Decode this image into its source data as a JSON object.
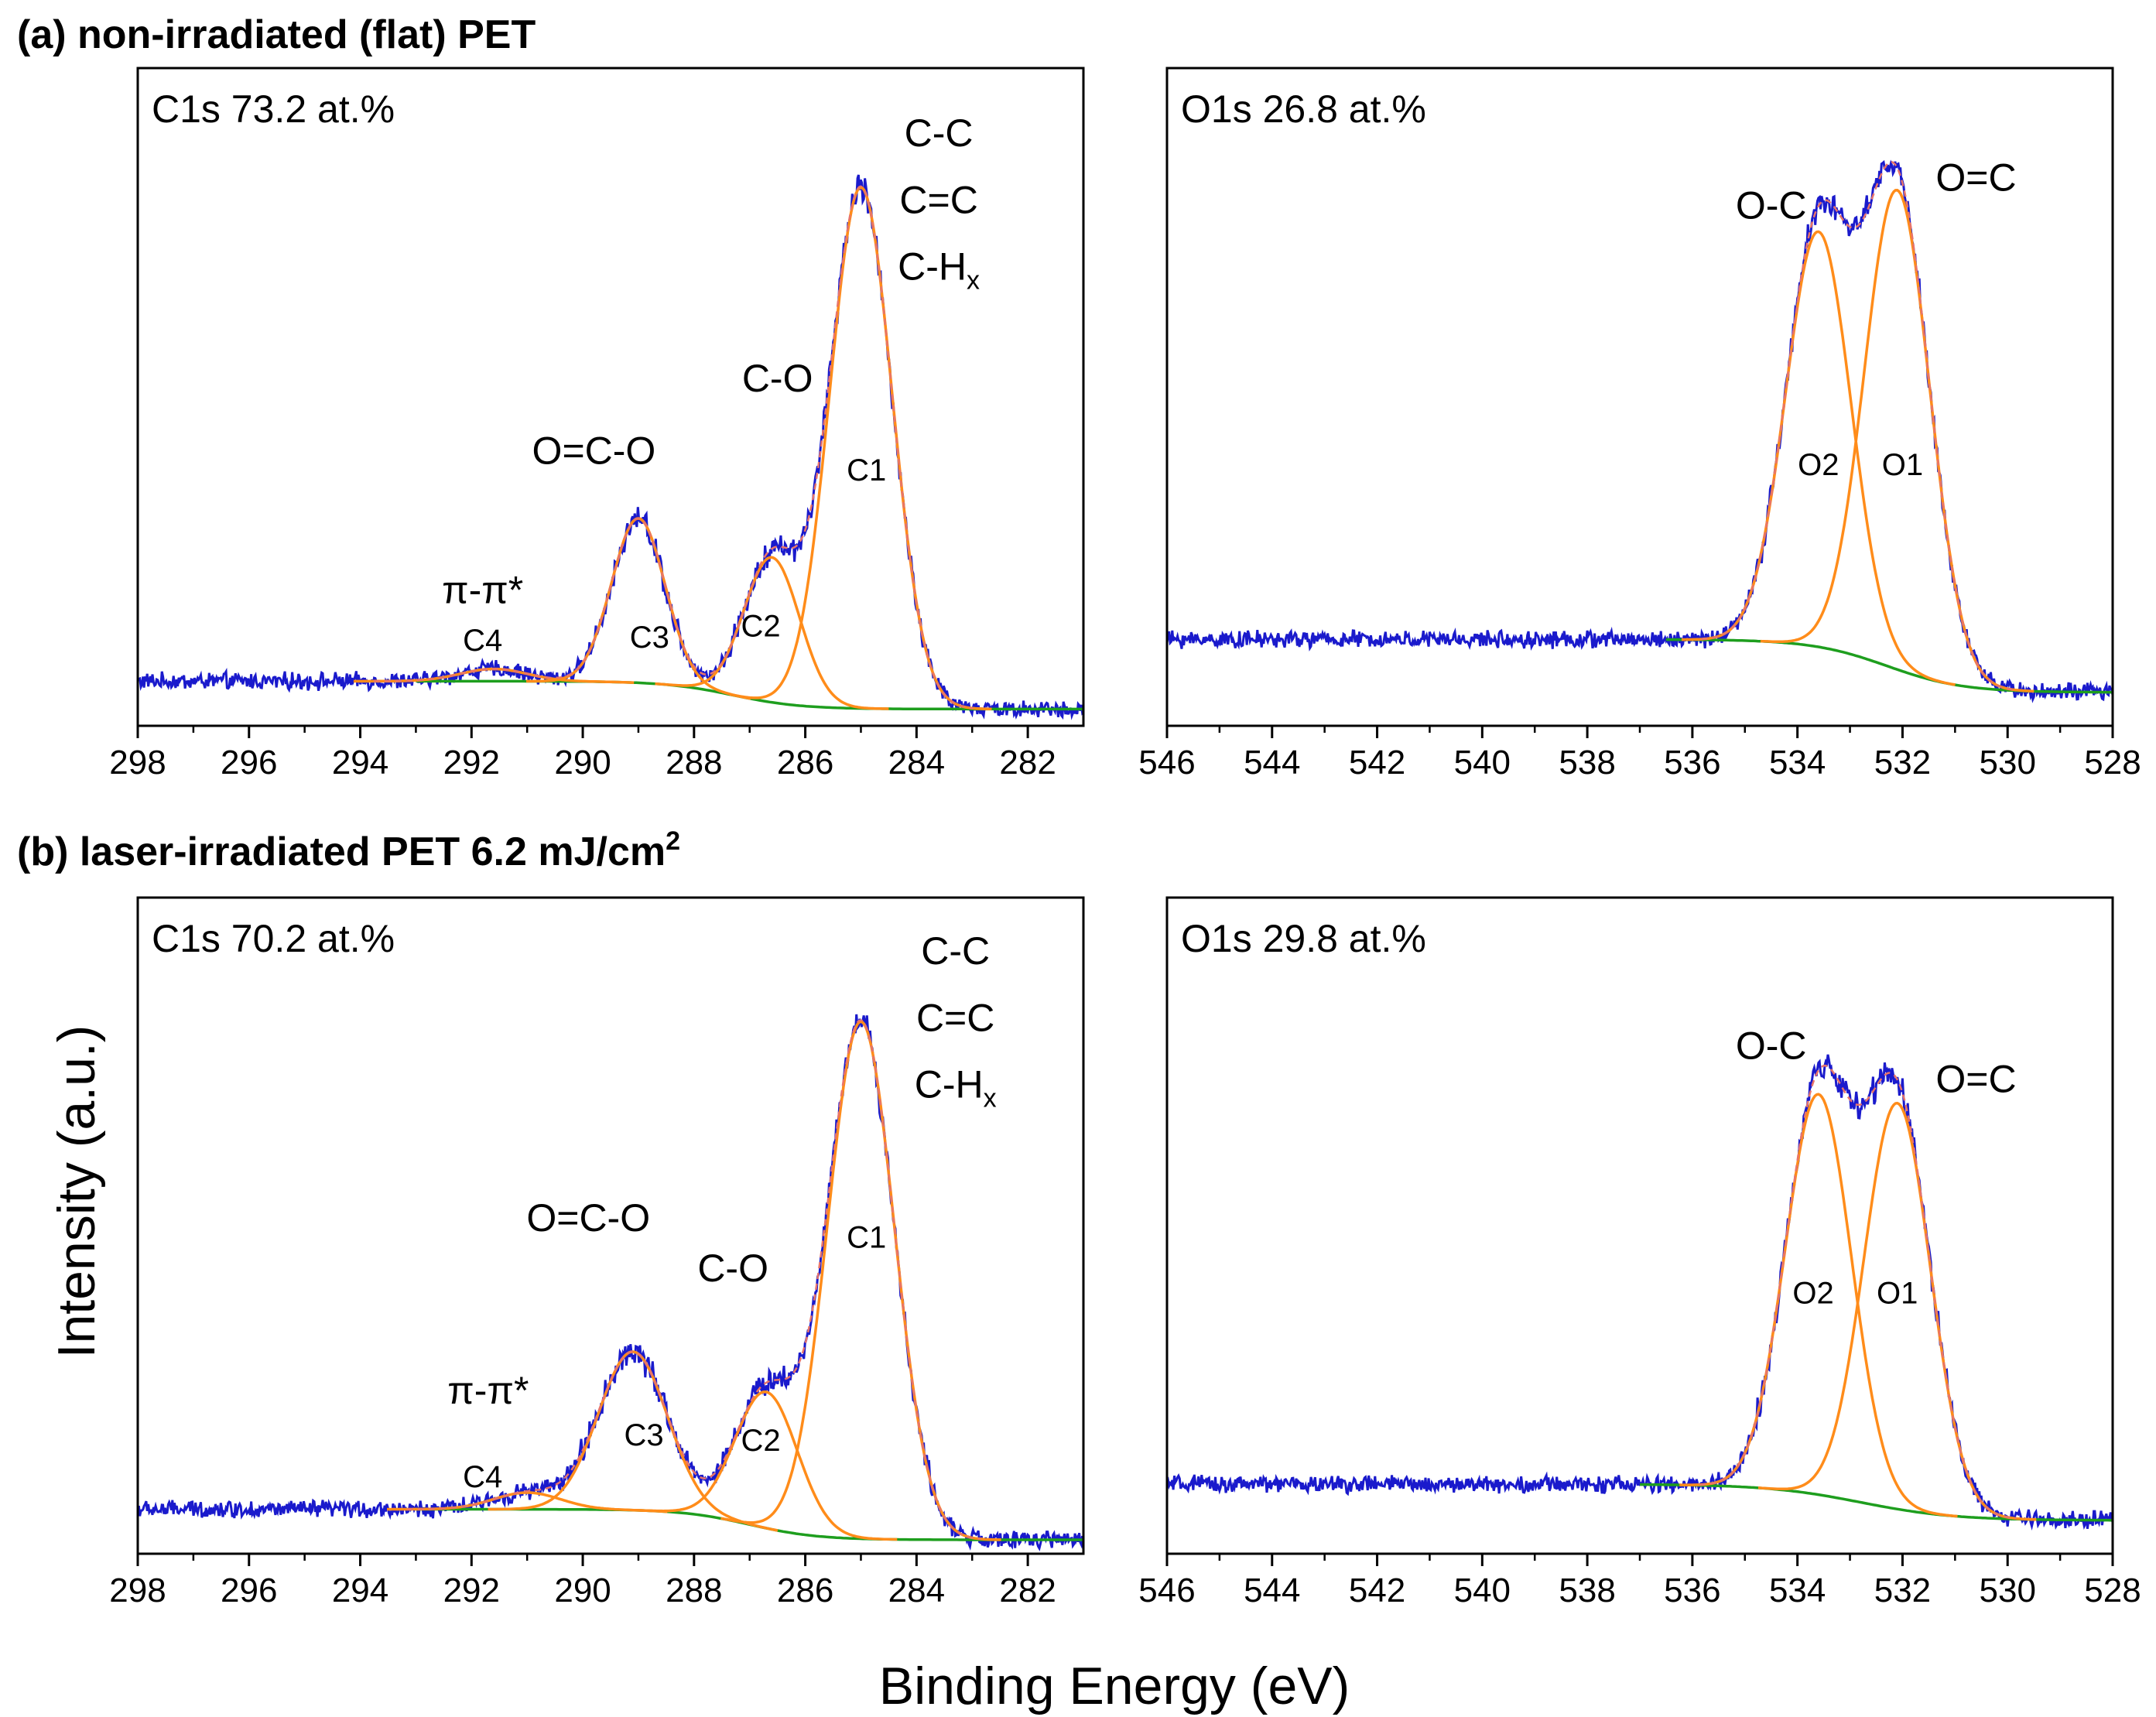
{
  "figure": {
    "row_a_title": "(a) non-irradiated (flat) PET",
    "row_b_title_main": "(b) laser-irradiated PET 6.2 mJ/cm",
    "row_b_title_sup": "2",
    "xlabel": "Binding Energy (eV)",
    "ylabel": "Intensity (a.u.)",
    "colors": {
      "measured": "#1a1acc",
      "component": "#ff8c1a",
      "background": "#1e9e1e",
      "fit": "#e8746a"
    }
  },
  "chart_data": [
    {
      "id": "a_c1s",
      "type": "line",
      "title": "C1s 73.2 at.%",
      "xlim": [
        298,
        281
      ],
      "xticks": [
        298,
        296,
        294,
        292,
        290,
        288,
        286,
        284,
        282
      ],
      "ylim": [
        -0.06,
        1.12
      ],
      "background": {
        "left": 0.02,
        "right": -0.03,
        "center": 287.3,
        "width": 1.1,
        "x_start": 293
      },
      "peaks": [
        {
          "label": "C1",
          "center": 285.0,
          "height": 0.935,
          "sigma": 0.56
        },
        {
          "label": "C2",
          "center": 286.6,
          "height": 0.26,
          "sigma": 0.5
        },
        {
          "label": "C3",
          "center": 289.0,
          "height": 0.295,
          "sigma": 0.48
        },
        {
          "label": "C4",
          "center": 291.6,
          "height": 0.022,
          "sigma": 0.6
        }
      ],
      "annotations": [
        {
          "text": "C-C",
          "x": 283.6,
          "y": 0.98
        },
        {
          "text": "C=C",
          "x": 283.6,
          "y": 0.86
        },
        {
          "text": "C-H",
          "sub": "x",
          "x": 283.6,
          "y": 0.74
        },
        {
          "text": "C-O",
          "x": 286.5,
          "y": 0.54
        },
        {
          "text": "O=C-O",
          "x": 289.8,
          "y": 0.41
        },
        {
          "text": "π-π*",
          "x": 291.8,
          "y": 0.16
        }
      ],
      "component_labels": [
        {
          "text": "C1",
          "x": 284.9,
          "y": 0.38
        },
        {
          "text": "C2",
          "x": 286.8,
          "y": 0.1
        },
        {
          "text": "C3",
          "x": 288.8,
          "y": 0.08
        },
        {
          "text": "C4",
          "x": 291.8,
          "y": 0.075
        }
      ]
    },
    {
      "id": "a_o1s",
      "type": "line",
      "title": "O1s 26.8 at.%",
      "xlim": [
        546,
        528
      ],
      "xticks": [
        546,
        544,
        542,
        540,
        538,
        536,
        534,
        532,
        530,
        528
      ],
      "ylim": [
        -0.06,
        1.12
      ],
      "background": {
        "left": 0.095,
        "right": 0.0,
        "center": 532.3,
        "width": 1.3,
        "x_start": 536.5
      },
      "peaks": [
        {
          "label": "O1",
          "center": 532.1,
          "height": 0.86,
          "sigma": 0.62
        },
        {
          "label": "O2",
          "center": 533.6,
          "height": 0.745,
          "sigma": 0.62
        }
      ],
      "annotations": [
        {
          "text": "O-C",
          "x": 534.5,
          "y": 0.85
        },
        {
          "text": "O=C",
          "x": 530.6,
          "y": 0.9
        }
      ],
      "component_labels": [
        {
          "text": "O2",
          "x": 533.6,
          "y": 0.39
        },
        {
          "text": "O1",
          "x": 532.0,
          "y": 0.39
        }
      ]
    },
    {
      "id": "b_c1s",
      "type": "line",
      "title": "C1s 70.2 at.%",
      "xlim": [
        298,
        281
      ],
      "xticks": [
        298,
        296,
        294,
        292,
        290,
        288,
        286,
        284,
        282
      ],
      "ylim": [
        -0.06,
        1.12
      ],
      "background": {
        "left": 0.02,
        "right": -0.035,
        "center": 287.0,
        "width": 1.1,
        "x_start": 293
      },
      "peaks": [
        {
          "label": "C1",
          "center": 285.0,
          "height": 0.93,
          "sigma": 0.6
        },
        {
          "label": "C2",
          "center": 286.7,
          "height": 0.245,
          "sigma": 0.56
        },
        {
          "label": "C3",
          "center": 289.1,
          "height": 0.285,
          "sigma": 0.62
        },
        {
          "label": "C4",
          "center": 291.0,
          "height": 0.03,
          "sigma": 0.6
        }
      ],
      "annotations": [
        {
          "text": "C-C",
          "x": 283.3,
          "y": 1.0
        },
        {
          "text": "C=C",
          "x": 283.3,
          "y": 0.88
        },
        {
          "text": "C-H",
          "sub": "x",
          "x": 283.3,
          "y": 0.76
        },
        {
          "text": "C-O",
          "x": 287.3,
          "y": 0.43
        },
        {
          "text": "O=C-O",
          "x": 289.9,
          "y": 0.52
        },
        {
          "text": "π-π*",
          "x": 291.7,
          "y": 0.21
        }
      ],
      "component_labels": [
        {
          "text": "C1",
          "x": 284.9,
          "y": 0.49
        },
        {
          "text": "C2",
          "x": 286.8,
          "y": 0.125
        },
        {
          "text": "C3",
          "x": 288.9,
          "y": 0.135
        },
        {
          "text": "C4",
          "x": 291.8,
          "y": 0.06
        }
      ]
    },
    {
      "id": "b_o1s",
      "type": "line",
      "title": "O1s 29.8 at.%",
      "xlim": [
        546,
        528
      ],
      "xticks": [
        546,
        544,
        542,
        540,
        538,
        536,
        534,
        532,
        530,
        528
      ],
      "ylim": [
        -0.06,
        1.12
      ],
      "background": {
        "left": 0.065,
        "right": 0.0,
        "center": 532.8,
        "width": 1.6,
        "x_start": 537
      },
      "peaks": [
        {
          "label": "O1",
          "center": 532.1,
          "height": 0.73,
          "sigma": 0.63
        },
        {
          "label": "O2",
          "center": 533.6,
          "height": 0.72,
          "sigma": 0.63
        }
      ],
      "annotations": [
        {
          "text": "O-C",
          "x": 534.5,
          "y": 0.83
        },
        {
          "text": "O=C",
          "x": 530.6,
          "y": 0.77
        }
      ],
      "component_labels": [
        {
          "text": "O2",
          "x": 533.7,
          "y": 0.39
        },
        {
          "text": "O1",
          "x": 532.1,
          "y": 0.39
        }
      ]
    }
  ]
}
